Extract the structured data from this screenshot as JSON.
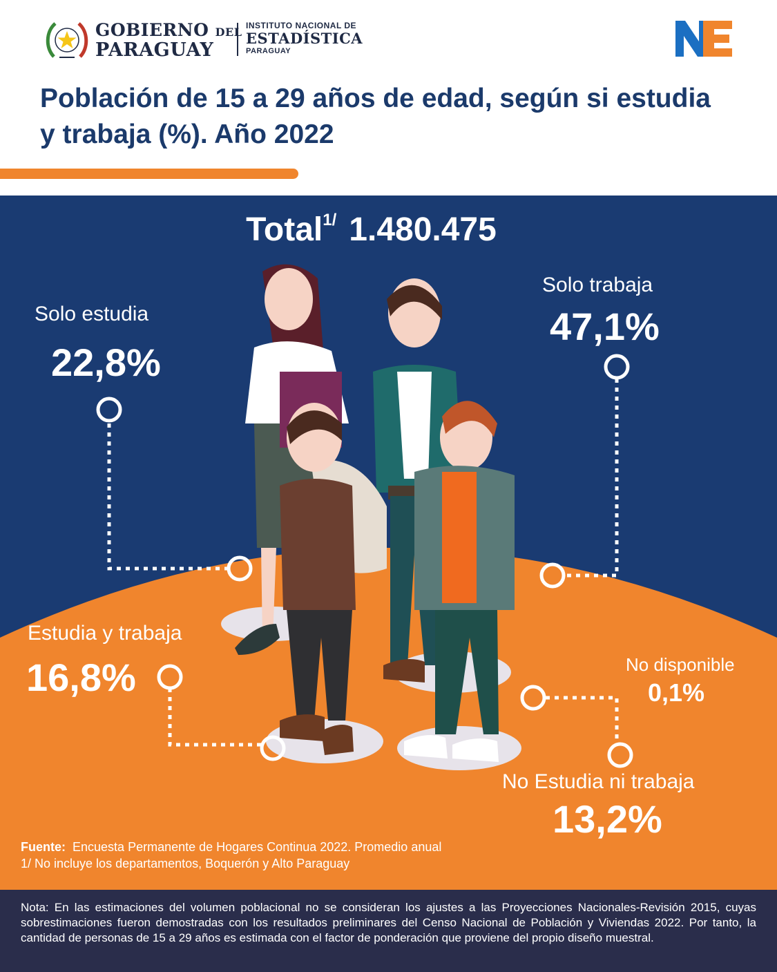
{
  "header": {
    "gov_line1": "GOBIERNO",
    "gov_del": "DEL",
    "gov_line2": "PARAGUAY",
    "ine_line1": "INSTITUTO NACIONAL DE",
    "ine_line2": "ESTADÍSTICA",
    "ine_line3": "PARAGUAY",
    "brand_mark": "NE"
  },
  "title": "Población de 15 a 29 años de edad, según si estudia y trabaja (%). Año 2022",
  "total": {
    "label": "Total",
    "footnote_mark": "1/",
    "value": "1.480.475"
  },
  "categories": [
    {
      "id": "solo_estudia",
      "label": "Solo estudia",
      "percent": "22,8%"
    },
    {
      "id": "solo_trabaja",
      "label": "Solo trabaja",
      "percent": "47,1%"
    },
    {
      "id": "estudia_y_trabaja",
      "label": "Estudia y trabaja",
      "percent": "16,8%"
    },
    {
      "id": "no_disponible",
      "label": "No disponible",
      "percent": "0,1%"
    },
    {
      "id": "no_estudia_ni_trabaja",
      "label": "No Estudia ni trabaja",
      "percent": "13,2%"
    }
  ],
  "source": {
    "label": "Fuente:",
    "text": "Encuesta Permanente de Hogares Continua 2022. Promedio anual",
    "footnote": "1/ No incluye los departamentos, Boquerón y Alto Paraguay"
  },
  "note": "Nota: En las estimaciones del volumen poblacional no se consideran los ajustes a las Proyecciones Nacionales-Revisión 2015, cuyas sobrestimaciones fueron demostradas con los resultados preliminares del Censo Nacional de Población y Viviendas 2022. Por tanto, la cantidad de personas de 15 a 29 años es estimada con el factor de ponderación que proviene del propio diseño muestral.",
  "colors": {
    "navy": "#1a3b72",
    "orange": "#f0852d",
    "title_blue": "#1b3a6b",
    "note_bg": "#2a2d4b"
  },
  "icons": [
    "national-seal-icon",
    "ine-brand-icon",
    "people-illustration"
  ]
}
